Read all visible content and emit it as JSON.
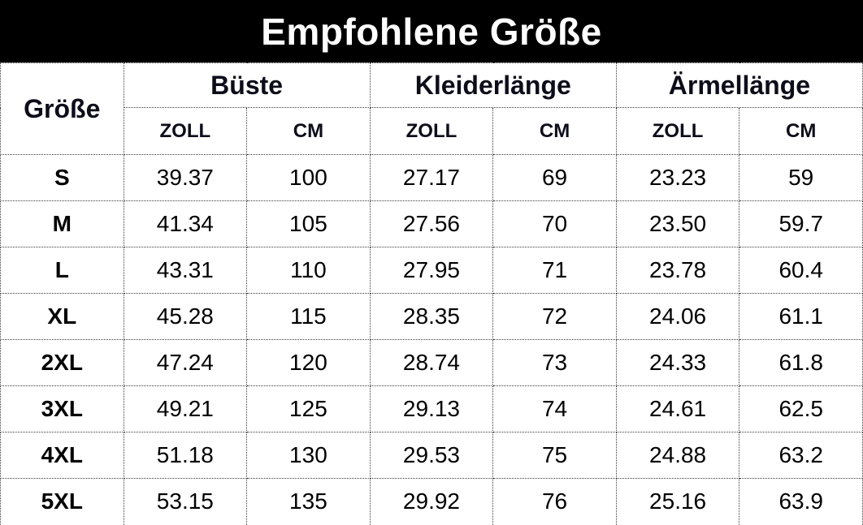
{
  "title": "Empfohlene Größe",
  "colors": {
    "banner_bg": "#000000",
    "banner_text": "#ffffff",
    "border": "#3c3c3c",
    "header_text": "#0d0d1a",
    "data_text": "#000000"
  },
  "table": {
    "corner_header": "Größe",
    "groups": [
      {
        "label": "Büste"
      },
      {
        "label": "Kleiderlänge"
      },
      {
        "label": "Ärmellänge"
      }
    ],
    "subheaders": [
      "ZOLL",
      "CM",
      "ZOLL",
      "CM",
      "ZOLL",
      "CM"
    ],
    "rows": [
      {
        "size": "S",
        "cells": [
          "39.37",
          "100",
          "27.17",
          "69",
          "23.23",
          "59"
        ]
      },
      {
        "size": "M",
        "cells": [
          "41.34",
          "105",
          "27.56",
          "70",
          "23.50",
          "59.7"
        ]
      },
      {
        "size": "L",
        "cells": [
          "43.31",
          "110",
          "27.95",
          "71",
          "23.78",
          "60.4"
        ]
      },
      {
        "size": "XL",
        "cells": [
          "45.28",
          "115",
          "28.35",
          "72",
          "24.06",
          "61.1"
        ]
      },
      {
        "size": "2XL",
        "cells": [
          "47.24",
          "120",
          "28.74",
          "73",
          "24.33",
          "61.8"
        ]
      },
      {
        "size": "3XL",
        "cells": [
          "49.21",
          "125",
          "29.13",
          "74",
          "24.61",
          "62.5"
        ]
      },
      {
        "size": "4XL",
        "cells": [
          "51.18",
          "130",
          "29.53",
          "75",
          "24.88",
          "63.2"
        ]
      },
      {
        "size": "5XL",
        "cells": [
          "53.15",
          "135",
          "29.92",
          "76",
          "25.16",
          "63.9"
        ]
      }
    ]
  }
}
